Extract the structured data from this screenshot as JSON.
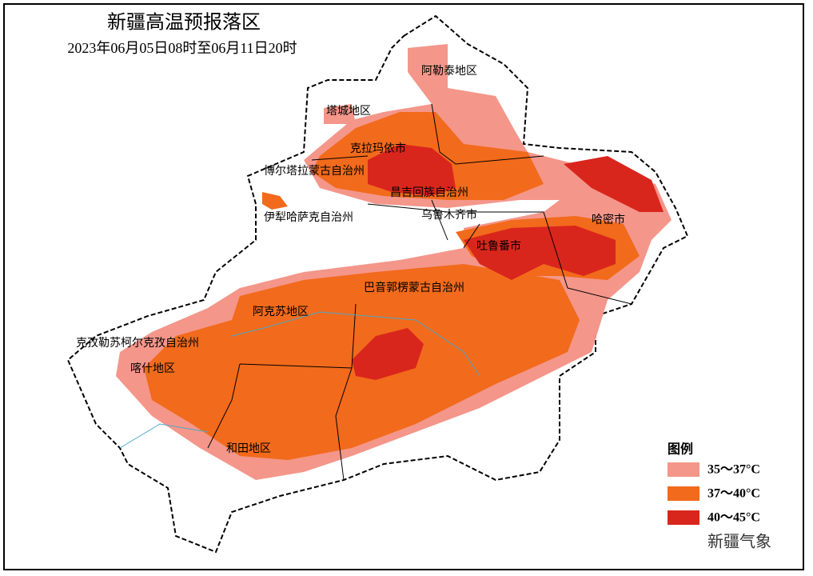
{
  "header": {
    "title": "新疆高温预报落区",
    "subtitle": "2023年06月05日08时至06月11日20时"
  },
  "regions": [
    {
      "label": "阿勒泰地区"
    },
    {
      "label": "塔城地区"
    },
    {
      "label": "克拉玛依市"
    },
    {
      "label": "博尔塔拉蒙古自治州"
    },
    {
      "label": "昌吉回族自治州"
    },
    {
      "label": "乌鲁木齐市"
    },
    {
      "label": "伊犁哈萨克自治州"
    },
    {
      "label": "哈密市"
    },
    {
      "label": "吐鲁番市"
    },
    {
      "label": "巴音郭楞蒙古自治州"
    },
    {
      "label": "阿克苏地区"
    },
    {
      "label": "克孜勒苏柯尔克孜自治州"
    },
    {
      "label": "喀什地区"
    },
    {
      "label": "和田地区"
    }
  ],
  "legend": {
    "title": "图例",
    "items": [
      {
        "label": "35～37°C",
        "color": "#f4968a"
      },
      {
        "label": "37～40°C",
        "color": "#f26a1b"
      },
      {
        "label": "40～45°C",
        "color": "#d9261c"
      }
    ]
  },
  "watermark": "新疆气象"
}
